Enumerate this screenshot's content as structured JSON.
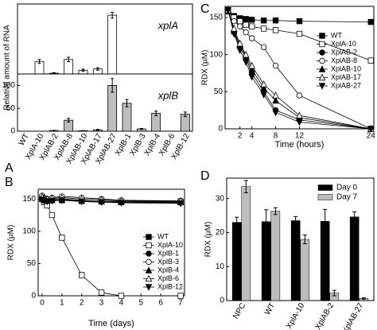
{
  "chart_data": [
    {
      "type": "rna_bars",
      "label": "A",
      "ylabel": "Relative amount of RNA",
      "categories": [
        "WT",
        "XplA-10",
        "XplAB-2",
        "XplAB-8",
        "XplAB-10",
        "XplAB-17",
        "XplAB-27",
        "XplB-1",
        "XplB-3",
        "XplB-4",
        "XplB-6",
        "XplB-12"
      ],
      "panels": [
        {
          "name": "xplA",
          "color": "#ffffff",
          "ylim": [
            0,
            28
          ],
          "values": [
            0,
            5,
            0.3,
            5.8,
            1.5,
            2,
            23.5,
            0,
            0,
            0,
            0,
            0
          ],
          "errors": [
            0,
            0.8,
            0.2,
            0.9,
            0.4,
            0.5,
            1.2,
            0,
            0,
            0,
            0,
            0
          ]
        },
        {
          "name": "xplB",
          "color": "#bdbdbd",
          "ylim": [
            0,
            125
          ],
          "yticks": [
            0,
            50,
            100
          ],
          "values": [
            0,
            0,
            1.5,
            24,
            1,
            3,
            100,
            61,
            5,
            39,
            0,
            37
          ],
          "errors": [
            0,
            0,
            0.5,
            4,
            0.5,
            1,
            15,
            8,
            1,
            5,
            0,
            5
          ]
        }
      ]
    },
    {
      "type": "line",
      "label": "B",
      "xlabel": "Time (days)",
      "ylabel": "RDX (µM)",
      "xlim": [
        -0.2,
        7.2
      ],
      "xticks": [
        0,
        1,
        2,
        3,
        4,
        5,
        6,
        7
      ],
      "ylim": [
        0,
        165
      ],
      "yticks": [
        0,
        50,
        100,
        150
      ],
      "x": [
        0,
        0.1,
        0.25,
        0.5,
        1,
        2,
        3,
        4,
        7
      ],
      "series": [
        {
          "name": "WT",
          "marker": "square",
          "marker_fill": "#000000",
          "values": [
            152,
            150,
            149,
            149,
            148,
            147,
            147,
            146,
            146
          ]
        },
        {
          "name": "XplA-10",
          "marker": "square",
          "marker_fill": "#ffffff",
          "values": [
            150,
            145,
            140,
            125,
            90,
            32,
            5,
            0,
            0
          ]
        },
        {
          "name": "XplB-1",
          "marker": "circle",
          "marker_fill": "#000000",
          "values": [
            151,
            149,
            148,
            150,
            150,
            148,
            146,
            145,
            144
          ]
        },
        {
          "name": "XplB-3",
          "marker": "circle",
          "marker_fill": "#ffffff",
          "values": [
            155,
            152,
            150,
            152,
            154,
            152,
            150,
            148,
            147
          ]
        },
        {
          "name": "XplB-4",
          "marker": "triangle",
          "marker_fill": "#000000",
          "values": [
            150,
            148,
            147,
            148,
            149,
            147,
            146,
            145,
            145
          ]
        },
        {
          "name": "XplB-6",
          "marker": "triangle",
          "marker_fill": "#ffffff",
          "values": [
            153,
            151,
            150,
            151,
            152,
            150,
            149,
            147,
            147
          ]
        },
        {
          "name": "XplB-12",
          "marker": "triangle-down",
          "marker_fill": "#000000",
          "values": [
            149,
            147,
            146,
            147,
            148,
            146,
            145,
            144,
            143
          ]
        }
      ]
    },
    {
      "type": "line",
      "label": "C",
      "xlabel": "Time (hours)",
      "ylabel": "RDX (µM)",
      "xlim": [
        -0.5,
        24.5
      ],
      "xticks": [
        2,
        4,
        8,
        12,
        24
      ],
      "ylim": [
        0,
        165
      ],
      "yticks": [
        0,
        50,
        100,
        150
      ],
      "x": [
        0,
        1,
        2,
        3,
        4,
        6,
        8,
        12,
        24
      ],
      "series": [
        {
          "name": "WT",
          "marker": "square",
          "marker_fill": "#000000",
          "values": [
            158,
            152,
            149,
            148,
            147,
            146,
            146,
            145,
            144
          ]
        },
        {
          "name": "XplA-10",
          "marker": "square",
          "marker_fill": "#ffffff",
          "values": [
            160,
            150,
            145,
            140,
            138,
            135,
            133,
            128,
            92
          ]
        },
        {
          "name": "XplAB-2",
          "marker": "circle",
          "marker_fill": "#000000",
          "values": [
            160,
            130,
            110,
            95,
            75,
            50,
            25,
            12,
            0
          ]
        },
        {
          "name": "XplAB-8",
          "marker": "circle",
          "marker_fill": "#ffffff",
          "values": [
            160,
            145,
            138,
            130,
            122,
            110,
            85,
            45,
            0
          ]
        },
        {
          "name": "XplAB-10",
          "marker": "triangle",
          "marker_fill": "#000000",
          "values": [
            160,
            132,
            112,
            98,
            80,
            55,
            38,
            15,
            0
          ]
        },
        {
          "name": "XplAB-17",
          "marker": "triangle",
          "marker_fill": "#ffffff",
          "values": [
            160,
            135,
            115,
            100,
            85,
            60,
            45,
            18,
            0
          ]
        },
        {
          "name": "XplAB-27",
          "marker": "triangle-down",
          "marker_fill": "#000000",
          "values": [
            160,
            128,
            106,
            90,
            70,
            46,
            22,
            9,
            0
          ]
        }
      ]
    },
    {
      "type": "grouped_bar",
      "label": "D",
      "ylabel": "RDX (µM)",
      "categories": [
        "NPC",
        "WT",
        "XplA-10",
        "XplAB-2",
        "XplAB-27"
      ],
      "ylim": [
        0,
        36
      ],
      "yticks": [
        0,
        10,
        20,
        30
      ],
      "series": [
        {
          "name": "Day 0",
          "color": "#000000",
          "values": [
            23,
            23.2,
            23.5,
            23.3,
            24.6
          ],
          "errors": [
            1.5,
            3.5,
            1.2,
            3.5,
            1.5
          ]
        },
        {
          "name": "Day 7",
          "color": "#bdbdbd",
          "values": [
            33.5,
            26.3,
            18,
            2.2,
            0.6
          ],
          "errors": [
            1.8,
            1,
            1.3,
            0.8,
            0.2
          ]
        }
      ]
    }
  ]
}
